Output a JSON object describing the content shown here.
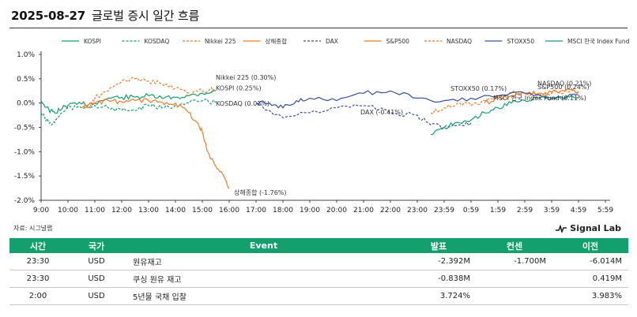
{
  "header": {
    "date": "2025-08-27",
    "subtitle": "글로벌 증시 일간 흐름"
  },
  "footer": {
    "source": "자료: 시그널랩",
    "brand": "Signal Lab"
  },
  "colors": {
    "KOSPI": "#14a06e",
    "KOSDAQ": "#14a06e",
    "Nikkei 225": "#f07d28",
    "상해종합": "#f07d28",
    "DAX": "#3a50a0",
    "S&P500": "#f07d28",
    "NASDAQ": "#f07d28",
    "STOXX50": "#3a50a0",
    "MSCI 한국 Index Fund": "#14a06e",
    "header_bg": "#14a06e"
  },
  "chart_data": {
    "type": "line",
    "title": "",
    "xlabel": "",
    "ylabel": "",
    "x_ticks": [
      "9:00",
      "10:00",
      "11:00",
      "12:00",
      "13:00",
      "14:00",
      "15:00",
      "16:00",
      "17:00",
      "18:00",
      "19:00",
      "20:00",
      "21:00",
      "22:00",
      "23:00",
      "23:59",
      "0:59",
      "1:59",
      "2:59",
      "3:59",
      "4:59",
      "5:59"
    ],
    "y_ticks": [
      "1.0%",
      "0.5%",
      "0.0%",
      "-0.5%",
      "-1.0%",
      "-1.5%",
      "-2.0%"
    ],
    "ylim": [
      -2.0,
      1.0
    ],
    "x_unit": "hours from 9:00 KST (0-20)",
    "grid": false,
    "legend_position": "top",
    "series": [
      {
        "name": "KOSPI",
        "dash": "solid",
        "end_label": "KOSPI (0.25%)",
        "x": [
          0,
          0.3,
          0.5,
          0.8,
          1.0,
          1.5,
          2.0,
          2.5,
          3.0,
          3.5,
          4.0,
          4.5,
          5.0,
          5.5,
          6.0,
          6.5
        ],
        "values": [
          0.05,
          -0.15,
          -0.2,
          -0.1,
          -0.05,
          -0.02,
          0.0,
          0.1,
          0.12,
          0.12,
          0.15,
          0.1,
          0.12,
          0.15,
          0.2,
          0.25
        ]
      },
      {
        "name": "KOSDAQ",
        "dash": "dash",
        "end_label": "KOSDAQ (0.01%)",
        "x": [
          0,
          0.2,
          0.4,
          0.6,
          1.0,
          1.5,
          2.0,
          2.5,
          3.0,
          3.5,
          4.0,
          4.5,
          5.0,
          5.5,
          6.0,
          6.5
        ],
        "values": [
          -0.2,
          -0.35,
          -0.45,
          -0.3,
          -0.1,
          -0.1,
          -0.05,
          -0.1,
          -0.15,
          -0.15,
          -0.05,
          -0.1,
          -0.05,
          0.0,
          0.05,
          0.01
        ]
      },
      {
        "name": "Nikkei 225",
        "dash": "dash",
        "end_label": "Nikkei 225 (0.30%)",
        "x": [
          1.5,
          1.8,
          2.0,
          2.5,
          3.0,
          3.5,
          4.0,
          4.5,
          5.0,
          5.5,
          6.0,
          6.5
        ],
        "values": [
          0.0,
          -0.1,
          0.1,
          0.25,
          0.45,
          0.5,
          0.45,
          0.4,
          0.3,
          0.2,
          0.25,
          0.3
        ]
      },
      {
        "name": "상해종합",
        "dash": "solid",
        "end_label": "상해종합 (-1.76%)",
        "x": [
          1.5,
          2.0,
          2.5,
          3.0,
          3.5,
          4.0,
          4.5,
          5.0,
          5.5,
          5.8,
          6.0,
          6.2,
          6.5,
          6.8,
          7.0
        ],
        "values": [
          -0.1,
          0.0,
          0.05,
          0.02,
          0.05,
          0.05,
          0.02,
          0.0,
          -0.2,
          -0.4,
          -0.6,
          -1.0,
          -1.3,
          -1.5,
          -1.76
        ]
      },
      {
        "name": "DAX",
        "dash": "dash",
        "end_label": "DAX (-0.41%)",
        "x": [
          8.0,
          9.0,
          10.0,
          11.0,
          12.0,
          13.0,
          14.0,
          14.5,
          15.0,
          15.5,
          16.0
        ],
        "values": [
          0.0,
          -0.3,
          -0.2,
          -0.1,
          -0.05,
          -0.2,
          -0.25,
          -0.45,
          -0.5,
          -0.45,
          -0.41
        ]
      },
      {
        "name": "S&P500",
        "dash": "solid",
        "end_label": "S&P500 (0.24%)",
        "x": [
          16.5,
          17.0,
          17.5,
          18.0,
          18.5,
          19.0,
          19.5,
          20.0
        ],
        "values": [
          0.0,
          0.1,
          0.15,
          0.2,
          0.2,
          0.22,
          0.25,
          0.24
        ]
      },
      {
        "name": "NASDAQ",
        "dash": "dash",
        "end_label": "NASDAQ (0.21%)",
        "x": [
          14.5,
          15.0,
          15.5,
          16.0,
          16.5,
          17.0,
          17.5,
          18.0,
          18.5,
          19.0,
          19.5,
          20.0
        ],
        "values": [
          -0.2,
          -0.1,
          0.0,
          -0.05,
          0.05,
          0.15,
          0.2,
          0.2,
          0.15,
          0.2,
          0.25,
          0.21
        ]
      },
      {
        "name": "STOXX50",
        "dash": "solid",
        "end_label": "STOXX50 (0.17%)",
        "x": [
          8.0,
          8.5,
          9.0,
          9.5,
          10.0,
          11.0,
          12.0,
          13.0,
          14.0,
          15.0,
          16.0,
          17.0,
          18.0,
          19.0,
          20.0
        ],
        "values": [
          0.0,
          0.0,
          -0.1,
          0.05,
          0.1,
          0.05,
          0.2,
          0.25,
          0.1,
          0.05,
          0.1,
          0.15,
          0.2,
          0.1,
          0.17
        ]
      },
      {
        "name": "MSCI 한국 Index Fund",
        "dash": "solid",
        "end_label": "MSCI 한국 Index Fund (0.11%)",
        "x": [
          14.5,
          15.0,
          15.5,
          16.0,
          16.5,
          17.0,
          17.5,
          18.0,
          18.5,
          19.0,
          19.5,
          20.0
        ],
        "values": [
          -0.65,
          -0.5,
          -0.4,
          -0.35,
          -0.2,
          -0.1,
          0.0,
          0.05,
          0.1,
          0.1,
          0.12,
          0.11
        ]
      }
    ]
  },
  "table": {
    "headers": [
      "시간",
      "국가",
      "Event",
      "발표",
      "컨센",
      "이전"
    ],
    "rows": [
      [
        "23:30",
        "USD",
        "원유재고",
        "-2.392M",
        "-1.700M",
        "-6.014M"
      ],
      [
        "23:30",
        "USD",
        "쿠싱 원유 재고",
        "-0.838M",
        "",
        "0.419M"
      ],
      [
        "2:00",
        "USD",
        "5년물 국채 입찰",
        "3.724%",
        "",
        "3.983%"
      ]
    ]
  }
}
